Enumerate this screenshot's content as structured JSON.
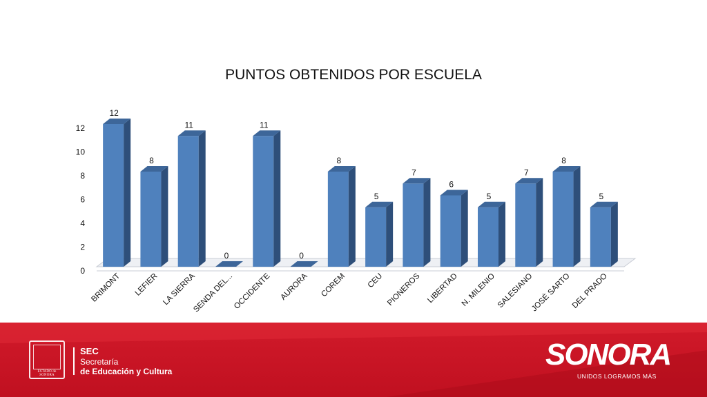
{
  "chart_data": {
    "type": "bar",
    "title": "PUNTOS OBTENIDOS POR ESCUELA",
    "categories": [
      "BRIMONT",
      "LEFIER",
      "LA SIERRA",
      "SENDA DEL...",
      "OCCIDENTE",
      "AURORA",
      "COREM",
      "CEU",
      "PIONEROS",
      "LIBERTAD",
      "N. MILENIO",
      "SALESIANO",
      "JOSÉ SARTO",
      "DEL PRADO"
    ],
    "values": [
      12,
      8,
      11,
      0,
      11,
      0,
      8,
      5,
      7,
      6,
      5,
      7,
      8,
      5
    ],
    "yticks": [
      0,
      2,
      4,
      6,
      8,
      10,
      12
    ],
    "ylim": [
      0,
      12
    ],
    "grid": false,
    "legend": "none",
    "bar_color_front": "#4f81bd",
    "bar_color_side": "#2e4f7a",
    "bar_color_top": "#3d6699",
    "floor_color": "#eef0f4"
  },
  "footer": {
    "seal_text": "ESTADO de SONORA",
    "sec_abbr": "SEC",
    "sec_line1": "Secretaría",
    "sec_line2": "de Educación y Cultura",
    "brand": "SONORA",
    "tagline": "UNIDOS LOGRAMOS MÁS",
    "color": "#c8141f"
  }
}
